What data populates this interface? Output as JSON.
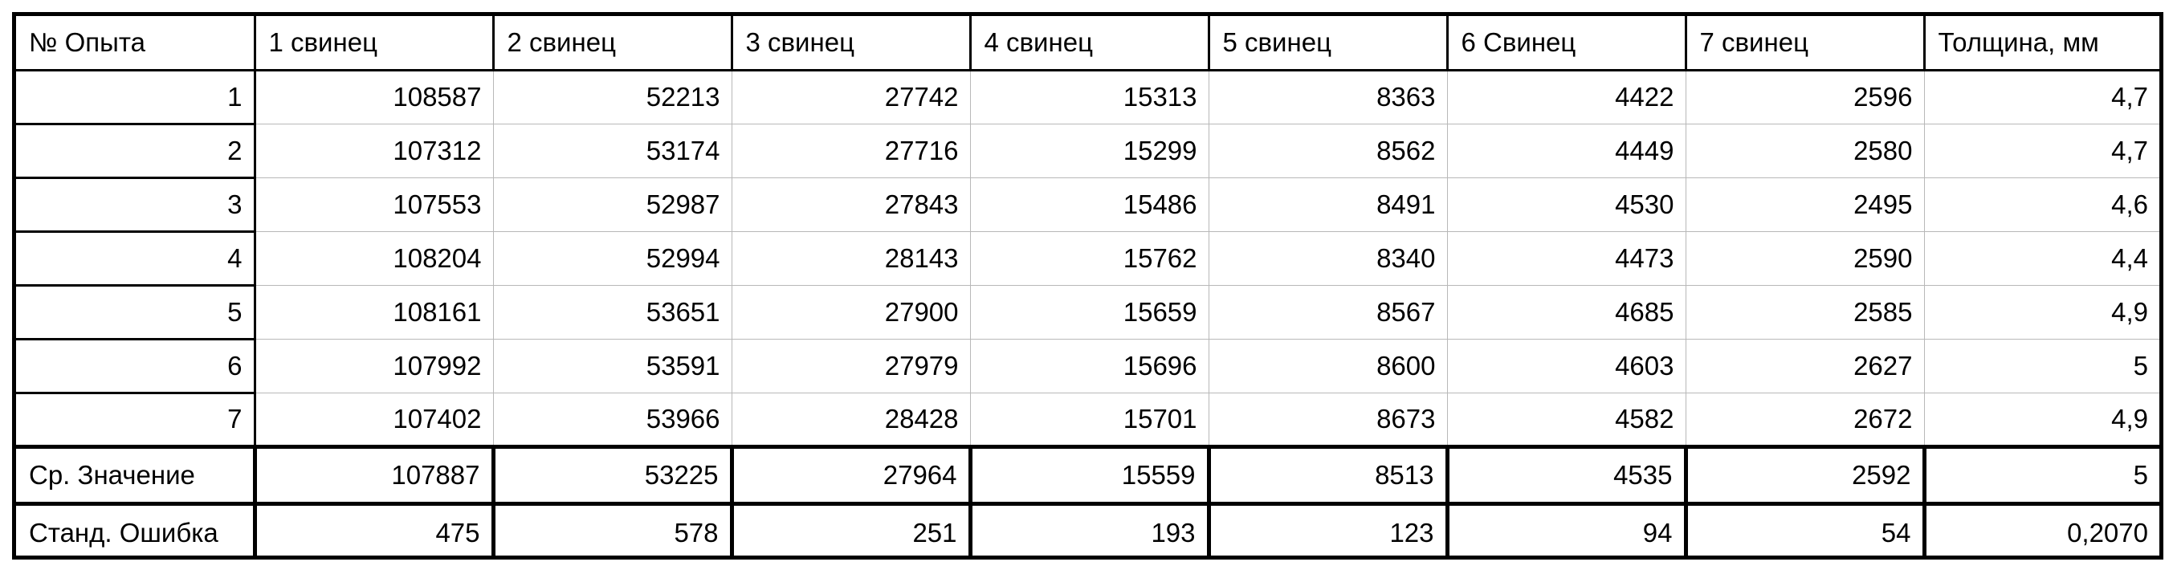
{
  "table": {
    "headers": [
      "№ Опыта",
      "1 свинец",
      "2 свинец",
      "3 свинец",
      "4 свинец",
      "5 свинец",
      "6 Свинец",
      "7 свинец",
      "Толщина, мм"
    ],
    "rows": [
      [
        "1",
        "108587",
        "52213",
        "27742",
        "15313",
        "8363",
        "4422",
        "2596",
        "4,7"
      ],
      [
        "2",
        "107312",
        "53174",
        "27716",
        "15299",
        "8562",
        "4449",
        "2580",
        "4,7"
      ],
      [
        "3",
        "107553",
        "52987",
        "27843",
        "15486",
        "8491",
        "4530",
        "2495",
        "4,6"
      ],
      [
        "4",
        "108204",
        "52994",
        "28143",
        "15762",
        "8340",
        "4473",
        "2590",
        "4,4"
      ],
      [
        "5",
        "108161",
        "53651",
        "27900",
        "15659",
        "8567",
        "4685",
        "2585",
        "4,9"
      ],
      [
        "6",
        "107992",
        "53591",
        "27979",
        "15696",
        "8600",
        "4603",
        "2627",
        "5"
      ],
      [
        "7",
        "107402",
        "53966",
        "28428",
        "15701",
        "8673",
        "4582",
        "2672",
        "4,9"
      ]
    ],
    "summary": [
      [
        "Ср. Значение",
        "107887",
        "53225",
        "27964",
        "15559",
        "8513",
        "4535",
        "2592",
        "5"
      ],
      [
        "Станд. Ошибка",
        "475",
        "578",
        "251",
        "193",
        "123",
        "94",
        "54",
        "0,2070"
      ]
    ]
  }
}
